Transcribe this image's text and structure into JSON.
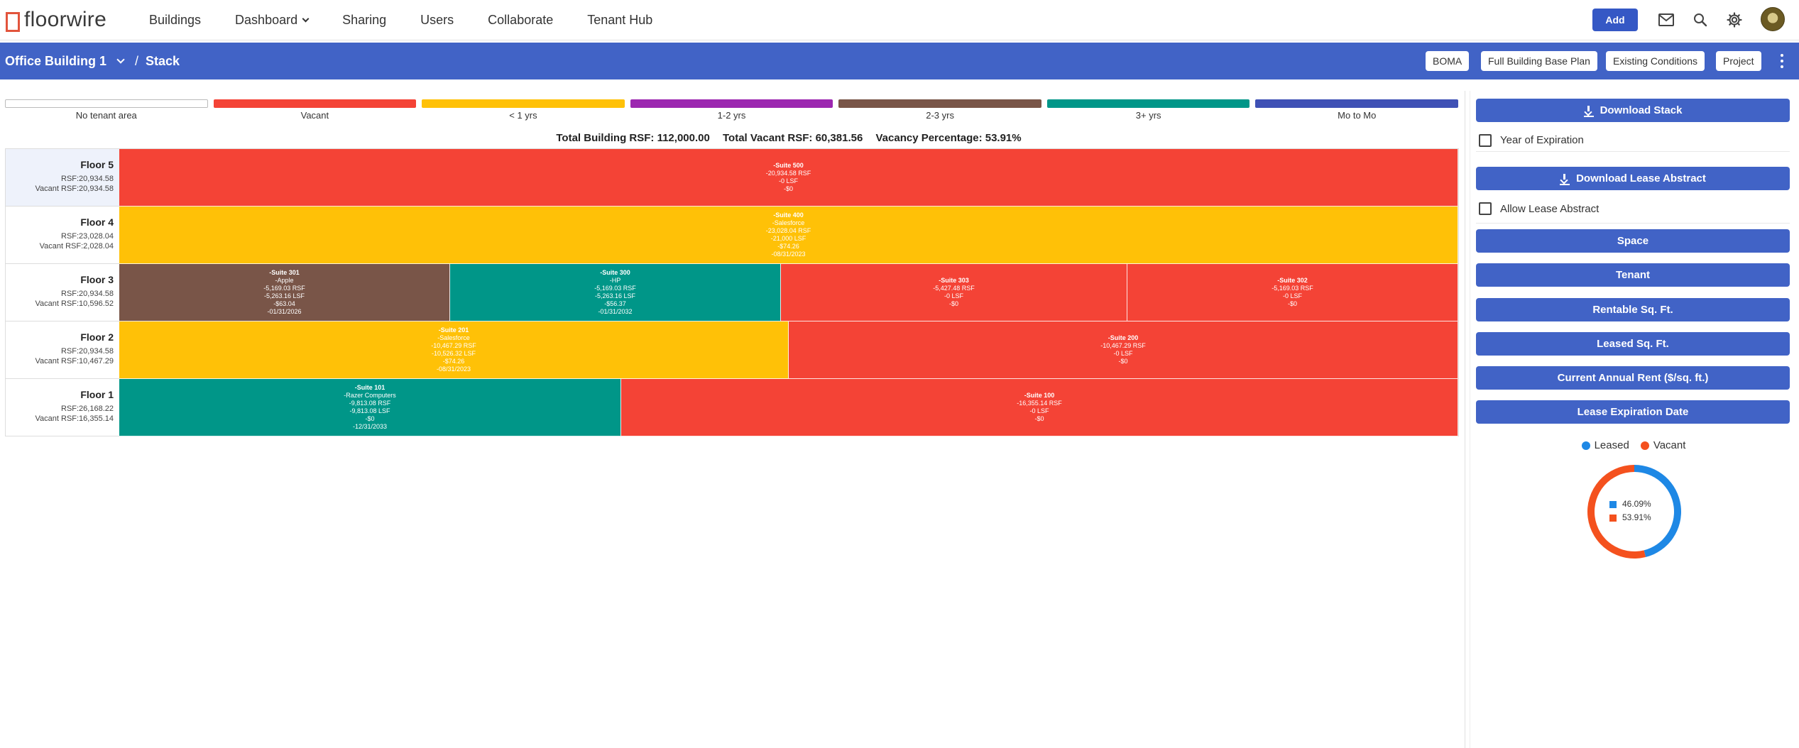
{
  "app": {
    "logo_text": "floorwire"
  },
  "nav": {
    "items": [
      {
        "label": "Buildings"
      },
      {
        "label": "Dashboard",
        "dropdown": true
      },
      {
        "label": "Sharing"
      },
      {
        "label": "Users"
      },
      {
        "label": "Collaborate"
      },
      {
        "label": "Tenant Hub"
      }
    ],
    "add_label": "Add",
    "icons": [
      "mail-icon",
      "search-icon",
      "gear-icon"
    ]
  },
  "subheader": {
    "building": "Office Building 1",
    "separator": "/",
    "page": "Stack",
    "buttons": [
      "BOMA",
      "Full Building Base Plan",
      "Existing Conditions",
      "Project"
    ]
  },
  "legend": [
    {
      "label": "No tenant area",
      "color": "#ffffff"
    },
    {
      "label": "Vacant",
      "color": "#f44336"
    },
    {
      "label": "< 1 yrs",
      "color": "#ffc107"
    },
    {
      "label": "1-2 yrs",
      "color": "#9c27b0"
    },
    {
      "label": "2-3 yrs",
      "color": "#795548"
    },
    {
      "label": "3+ yrs",
      "color": "#009688"
    },
    {
      "label": "Mo to Mo",
      "color": "#3f51b5"
    }
  ],
  "totals": {
    "total_rsf": "Total Building RSF: 112,000.00",
    "total_vacant": "Total Vacant RSF: 60,381.56",
    "vacancy": "Vacancy Percentage: 53.91%"
  },
  "floors": [
    {
      "name": "Floor 5",
      "rsf": "RSF:20,934.58",
      "vacant": "Vacant RSF:20,934.58",
      "selected": true,
      "suites": [
        {
          "color": "#f44336",
          "share": 1.0,
          "lines": [
            "-Suite 500",
            "-20,934.58 RSF",
            "-0 LSF",
            "-$0"
          ]
        }
      ]
    },
    {
      "name": "Floor 4",
      "rsf": "RSF:23,028.04",
      "vacant": "Vacant RSF:2,028.04",
      "suites": [
        {
          "color": "#ffc107",
          "share": 1.0,
          "lines": [
            "-Suite 400",
            "-Salesforce",
            "-23,028.04 RSF",
            "-21,000 LSF",
            "-$74.26",
            "-08/31/2023"
          ]
        }
      ]
    },
    {
      "name": "Floor 3",
      "rsf": "RSF:20,934.58",
      "vacant": "Vacant RSF:10,596.52",
      "suites": [
        {
          "color": "#795548",
          "share": 0.247,
          "lines": [
            "-Suite 301",
            "-Apple",
            "-5,169.03 RSF",
            "-5,263.16 LSF",
            "-$63.04",
            "-01/31/2026"
          ]
        },
        {
          "color": "#009688",
          "share": 0.247,
          "lines": [
            "-Suite 300",
            "-HP",
            "-5,169.03 RSF",
            "-5,263.16 LSF",
            "-$56.37",
            "-01/31/2032"
          ]
        },
        {
          "color": "#f44336",
          "share": 0.259,
          "lines": [
            "-Suite 303",
            "-5,427.48 RSF",
            "-0 LSF",
            "-$0"
          ]
        },
        {
          "color": "#f44336",
          "share": 0.247,
          "lines": [
            "-Suite 302",
            "-5,169.03 RSF",
            "-0 LSF",
            "-$0"
          ]
        }
      ]
    },
    {
      "name": "Floor 2",
      "rsf": "RSF:20,934.58",
      "vacant": "Vacant RSF:10,467.29",
      "suites": [
        {
          "color": "#ffc107",
          "share": 0.5,
          "lines": [
            "-Suite 201",
            "-Salesforce",
            "-10,467.29 RSF",
            "-10,526.32 LSF",
            "-$74.26",
            "-08/31/2023"
          ]
        },
        {
          "color": "#f44336",
          "share": 0.5,
          "lines": [
            "-Suite 200",
            "-10,467.29 RSF",
            "-0 LSF",
            "-$0"
          ]
        }
      ]
    },
    {
      "name": "Floor 1",
      "rsf": "RSF:26,168.22",
      "vacant": "Vacant RSF:16,355.14",
      "suites": [
        {
          "color": "#009688",
          "share": 0.375,
          "lines": [
            "-Suite 101",
            "-Razer Computers",
            "-9,813.08 RSF",
            "-9,813.08 LSF",
            "-$0",
            "-12/31/2033"
          ]
        },
        {
          "color": "#f44336",
          "share": 0.625,
          "lines": [
            "-Suite 100",
            "-16,355.14 RSF",
            "-0 LSF",
            "-$0"
          ]
        }
      ]
    }
  ],
  "panel": {
    "download_stack": "Download Stack",
    "year_of_expiration": "Year of Expiration",
    "download_lease_abstract": "Download Lease Abstract",
    "allow_lease_abstract": "Allow Lease Abstract",
    "buttons": [
      "Space",
      "Tenant",
      "Rentable Sq. Ft.",
      "Leased Sq. Ft.",
      "Current Annual Rent ($/sq. ft.)",
      "Lease Expiration Date"
    ],
    "chart_legend": [
      {
        "label": "Leased",
        "color": "#1e88e5"
      },
      {
        "label": "Vacant",
        "color": "#f4511e"
      }
    ]
  },
  "chart_data": {
    "type": "pie",
    "categories": [
      "Leased",
      "Vacant"
    ],
    "values": [
      46.09,
      53.91
    ],
    "value_labels": [
      "46.09%",
      "53.91%"
    ],
    "colors": [
      "#1e88e5",
      "#f4511e"
    ],
    "donut": true,
    "legend_position": "top"
  }
}
